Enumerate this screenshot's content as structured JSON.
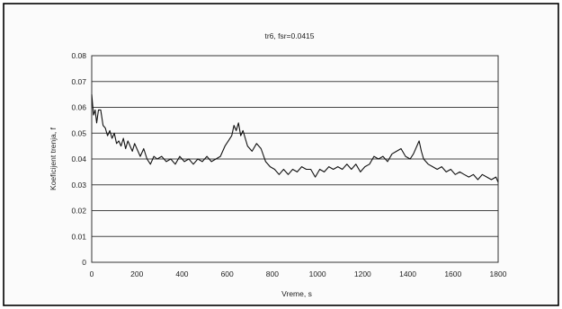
{
  "chart_data": {
    "type": "line",
    "title": "tr6, fsr=0.0415",
    "xlabel": "Vreme, s",
    "ylabel": "Koeficijent trenja, f",
    "xlim": [
      0,
      1800
    ],
    "ylim": [
      0,
      0.08
    ],
    "x_ticks": [
      0,
      200,
      400,
      600,
      800,
      1000,
      1200,
      1400,
      1600,
      1800
    ],
    "y_ticks": [
      "0",
      "0.01",
      "0.02",
      "0.03",
      "0.04",
      "0.05",
      "0.06",
      "0.07",
      "0.08"
    ],
    "grid": "horizontal",
    "legend": "none",
    "series": [
      {
        "x": [
          0,
          8,
          15,
          22,
          30,
          40,
          50,
          60,
          70,
          80,
          90,
          100,
          110,
          120,
          130,
          140,
          150,
          160,
          170,
          180,
          190,
          200,
          215,
          230,
          245,
          260,
          275,
          290,
          310,
          330,
          350,
          370,
          390,
          410,
          430,
          450,
          470,
          490,
          510,
          530,
          550,
          570,
          590,
          605,
          620,
          630,
          640,
          650,
          660,
          670,
          690,
          710,
          730,
          750,
          770,
          790,
          810,
          830,
          850,
          870,
          890,
          910,
          930,
          950,
          970,
          990,
          1010,
          1030,
          1050,
          1070,
          1090,
          1110,
          1130,
          1150,
          1170,
          1190,
          1210,
          1230,
          1250,
          1270,
          1290,
          1310,
          1330,
          1350,
          1370,
          1390,
          1410,
          1425,
          1440,
          1450,
          1460,
          1470,
          1490,
          1510,
          1530,
          1550,
          1570,
          1590,
          1610,
          1630,
          1650,
          1670,
          1690,
          1710,
          1730,
          1750,
          1770,
          1790,
          1800
        ],
        "y": [
          0.065,
          0.057,
          0.059,
          0.054,
          0.059,
          0.059,
          0.053,
          0.052,
          0.049,
          0.051,
          0.048,
          0.05,
          0.046,
          0.047,
          0.045,
          0.048,
          0.044,
          0.047,
          0.045,
          0.043,
          0.046,
          0.044,
          0.041,
          0.044,
          0.04,
          0.038,
          0.041,
          0.04,
          0.041,
          0.039,
          0.04,
          0.038,
          0.041,
          0.039,
          0.04,
          0.038,
          0.04,
          0.039,
          0.041,
          0.039,
          0.04,
          0.041,
          0.045,
          0.047,
          0.049,
          0.053,
          0.051,
          0.054,
          0.049,
          0.051,
          0.045,
          0.043,
          0.046,
          0.044,
          0.039,
          0.037,
          0.036,
          0.034,
          0.036,
          0.034,
          0.036,
          0.035,
          0.037,
          0.036,
          0.036,
          0.033,
          0.036,
          0.035,
          0.037,
          0.036,
          0.037,
          0.036,
          0.038,
          0.036,
          0.038,
          0.035,
          0.037,
          0.038,
          0.041,
          0.04,
          0.041,
          0.039,
          0.042,
          0.043,
          0.044,
          0.041,
          0.04,
          0.042,
          0.045,
          0.047,
          0.043,
          0.04,
          0.038,
          0.037,
          0.036,
          0.037,
          0.035,
          0.036,
          0.034,
          0.035,
          0.034,
          0.033,
          0.034,
          0.032,
          0.034,
          0.033,
          0.032,
          0.033,
          0.031
        ]
      }
    ]
  }
}
